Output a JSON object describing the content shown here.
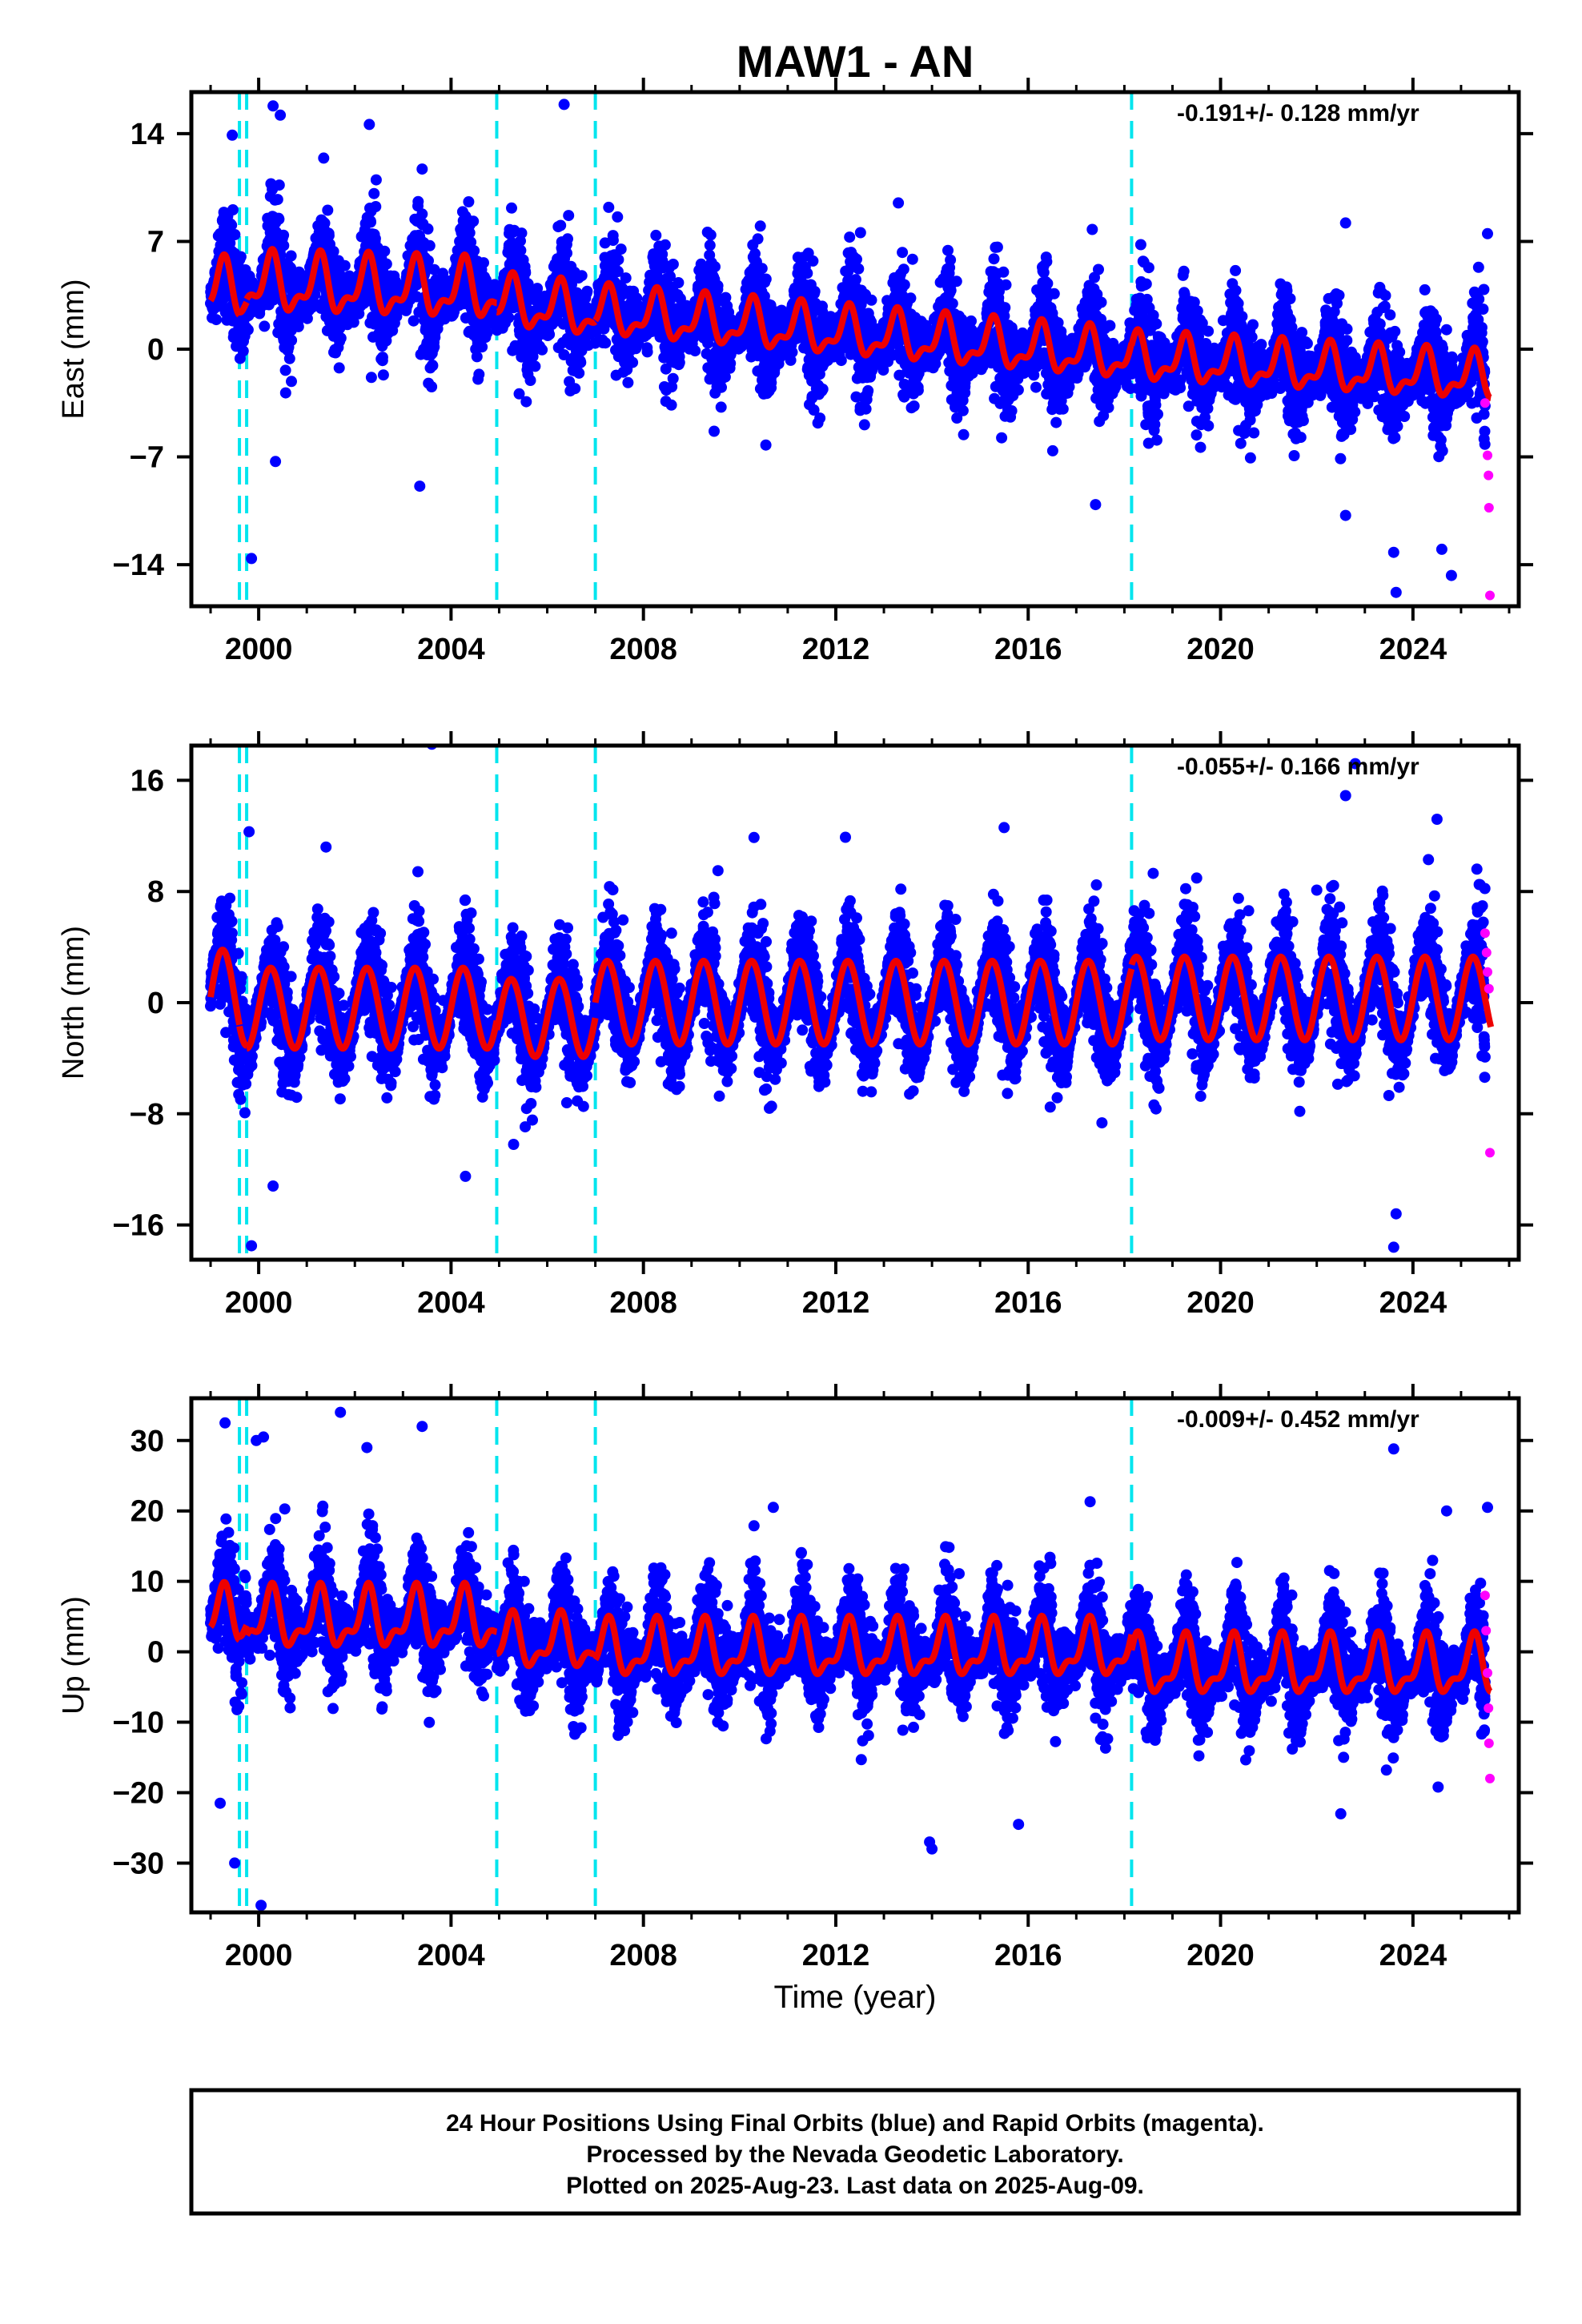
{
  "title": "MAW1 - AN",
  "colors": {
    "final_orbits": "#0000ff",
    "rapid_orbits": "#ff00ff",
    "model": "#ee0000",
    "steps": "#00e5ee",
    "frame": "#000000"
  },
  "xlabel": "Time (year)",
  "footer": {
    "line1": "24 Hour Positions Using Final Orbits (blue) and Rapid Orbits (magenta).",
    "line2": "Processed by the Nevada Geodetic Laboratory.",
    "line3": "Plotted on 2025-Aug-23. Last data on 2025-Aug-09."
  },
  "chart_data": [
    {
      "type": "scatter",
      "component": "East",
      "ylabel": "East (mm)",
      "rate_label": "-0.191+/- 0.128 mm/yr",
      "xlim": [
        1998.6,
        2026.2
      ],
      "ylim": [
        -16.7,
        16.7
      ],
      "xticks": [
        2000,
        2004,
        2008,
        2012,
        2016,
        2020,
        2024
      ],
      "yticks": [
        -14,
        -7,
        0,
        7,
        14
      ],
      "step_epochs": [
        1999.6,
        1999.75,
        2004.95,
        2007.0,
        2018.15
      ],
      "model_segments": [
        {
          "from": 1999.0,
          "to": 1999.6,
          "offset": 3.8,
          "rate": 0.0,
          "annual": 1.6,
          "semiannual": 0.8
        },
        {
          "from": 1999.6,
          "to": 1999.75,
          "offset": 4.0,
          "rate": 0.0,
          "annual": 1.6,
          "semiannual": 0.8
        },
        {
          "from": 1999.75,
          "to": 2004.95,
          "offset": 4.2,
          "rate": -0.09,
          "annual": 1.6,
          "semiannual": 0.8
        },
        {
          "from": 2004.95,
          "to": 2007.0,
          "offset": 3.05,
          "rate": -0.34,
          "annual": 1.4,
          "semiannual": 0.7
        },
        {
          "from": 2007.0,
          "to": 2018.15,
          "offset": 2.4,
          "rate": -0.26,
          "annual": 1.35,
          "semiannual": 0.65
        },
        {
          "from": 2018.15,
          "to": 2025.62,
          "offset": -0.6,
          "rate": -0.17,
          "annual": 1.3,
          "semiannual": 0.65
        }
      ],
      "rapid_points": [
        {
          "x": 2025.5,
          "y": -3.5
        },
        {
          "x": 2025.55,
          "y": -6.9
        },
        {
          "x": 2025.57,
          "y": -8.2
        },
        {
          "x": 2025.58,
          "y": -10.3
        },
        {
          "x": 2025.6,
          "y": -16.0
        }
      ],
      "outliers": [
        {
          "x": 2000.3,
          "y": 15.8
        },
        {
          "x": 2000.45,
          "y": 15.2
        },
        {
          "x": 2002.3,
          "y": 14.6
        },
        {
          "x": 2006.35,
          "y": 15.9
        },
        {
          "x": 1999.45,
          "y": 13.9
        },
        {
          "x": 2003.4,
          "y": 11.7
        },
        {
          "x": 2003.35,
          "y": -8.9
        },
        {
          "x": 1999.85,
          "y": -13.6
        },
        {
          "x": 2023.6,
          "y": -13.2
        },
        {
          "x": 2023.65,
          "y": -15.8
        },
        {
          "x": 2024.6,
          "y": -13.0
        },
        {
          "x": 2024.8,
          "y": -14.7
        },
        {
          "x": 2017.4,
          "y": -10.1
        },
        {
          "x": 2022.6,
          "y": -10.8
        },
        {
          "x": 2013.3,
          "y": 9.5
        },
        {
          "x": 2022.6,
          "y": 8.2
        },
        {
          "x": 2025.55,
          "y": 7.5
        },
        {
          "x": 2000.35,
          "y": -7.3
        }
      ]
    },
    {
      "type": "scatter",
      "component": "North",
      "ylabel": "North (mm)",
      "rate_label": "-0.055+/- 0.166 mm/yr",
      "xlim": [
        1998.6,
        2026.2
      ],
      "ylim": [
        -18.5,
        18.5
      ],
      "xticks": [
        2000,
        2004,
        2008,
        2012,
        2016,
        2020,
        2024
      ],
      "yticks": [
        -16,
        -8,
        0,
        8,
        16
      ],
      "step_epochs": [
        1999.6,
        1999.75,
        2004.95,
        2007.0,
        2018.15
      ],
      "model_segments": [
        {
          "from": 1999.0,
          "to": 1999.6,
          "offset": 0.4,
          "rate": 0.0,
          "annual": 3.4,
          "semiannual": 0.0
        },
        {
          "from": 1999.6,
          "to": 1999.75,
          "offset": 0.3,
          "rate": 0.0,
          "annual": 3.4,
          "semiannual": 0.0
        },
        {
          "from": 1999.75,
          "to": 2004.95,
          "offset": -0.4,
          "rate": 0.0,
          "annual": 2.9,
          "semiannual": 0.0
        },
        {
          "from": 2004.95,
          "to": 2007.0,
          "offset": -1.1,
          "rate": 0.0,
          "annual": 2.8,
          "semiannual": 0.0
        },
        {
          "from": 2007.0,
          "to": 2018.15,
          "offset": 0.0,
          "rate": 0.0,
          "annual": 3.0,
          "semiannual": 0.0
        },
        {
          "from": 2018.15,
          "to": 2025.62,
          "offset": 0.3,
          "rate": 0.0,
          "annual": 3.0,
          "semiannual": 0.0
        }
      ],
      "rapid_points": [
        {
          "x": 2025.5,
          "y": 5.0
        },
        {
          "x": 2025.53,
          "y": 3.6
        },
        {
          "x": 2025.55,
          "y": 2.2
        },
        {
          "x": 2025.58,
          "y": 1.0
        },
        {
          "x": 2025.6,
          "y": -10.8
        }
      ],
      "outliers": [
        {
          "x": 2003.6,
          "y": 18.6
        },
        {
          "x": 2022.8,
          "y": 17.2
        },
        {
          "x": 2012.2,
          "y": 11.9
        },
        {
          "x": 2015.5,
          "y": 12.6
        },
        {
          "x": 2001.4,
          "y": 11.2
        },
        {
          "x": 1999.8,
          "y": 12.3
        },
        {
          "x": 2022.6,
          "y": 14.9
        },
        {
          "x": 2024.5,
          "y": 13.2
        },
        {
          "x": 2000.3,
          "y": -13.2
        },
        {
          "x": 2004.3,
          "y": -12.5
        },
        {
          "x": 1999.85,
          "y": -17.5
        },
        {
          "x": 2023.6,
          "y": -17.6
        },
        {
          "x": 2023.65,
          "y": -15.2
        },
        {
          "x": 2005.3,
          "y": -10.2
        },
        {
          "x": 2018.6,
          "y": 9.3
        },
        {
          "x": 2022.0,
          "y": 8.1
        },
        {
          "x": 2009.55,
          "y": 9.5
        }
      ]
    },
    {
      "type": "scatter",
      "component": "Up",
      "ylabel": "Up (mm)",
      "rate_label": "-0.009+/- 0.452 mm/yr",
      "xlim": [
        1998.6,
        2026.2
      ],
      "ylim": [
        -37,
        36
      ],
      "xticks": [
        2000,
        2004,
        2008,
        2012,
        2016,
        2020,
        2024
      ],
      "yticks": [
        -30,
        -20,
        -10,
        0,
        10,
        20,
        30
      ],
      "step_epochs": [
        1999.6,
        1999.75,
        2004.95,
        2007.0,
        2018.15
      ],
      "model_segments": [
        {
          "from": 1999.0,
          "to": 1999.6,
          "offset": 5.0,
          "rate": 0.0,
          "annual": 3.2,
          "semiannual": 1.8
        },
        {
          "from": 1999.6,
          "to": 1999.75,
          "offset": 5.5,
          "rate": 0.0,
          "annual": 3.2,
          "semiannual": 1.8
        },
        {
          "from": 1999.75,
          "to": 2004.95,
          "offset": 4.5,
          "rate": 0.0,
          "annual": 3.6,
          "semiannual": 1.8
        },
        {
          "from": 2004.95,
          "to": 2007.0,
          "offset": 1.2,
          "rate": 0.0,
          "annual": 3.2,
          "semiannual": 1.6
        },
        {
          "from": 2007.0,
          "to": 2018.15,
          "offset": 0.2,
          "rate": 0.0,
          "annual": 3.4,
          "semiannual": 1.6
        },
        {
          "from": 2018.15,
          "to": 2025.62,
          "offset": -2.2,
          "rate": 0.0,
          "annual": 3.6,
          "semiannual": 1.6
        }
      ],
      "rapid_points": [
        {
          "x": 2025.5,
          "y": 8.0
        },
        {
          "x": 2025.52,
          "y": 3.0
        },
        {
          "x": 2025.55,
          "y": -3.0
        },
        {
          "x": 2025.57,
          "y": -8.0
        },
        {
          "x": 2025.58,
          "y": -13.0
        },
        {
          "x": 2025.6,
          "y": -18.0
        }
      ],
      "outliers": [
        {
          "x": 2001.7,
          "y": 34.0
        },
        {
          "x": 2003.4,
          "y": 32.0
        },
        {
          "x": 1999.3,
          "y": 32.5
        },
        {
          "x": 2023.6,
          "y": 28.8
        },
        {
          "x": 2000.1,
          "y": 30.5
        },
        {
          "x": 1999.95,
          "y": 30.0
        },
        {
          "x": 2002.25,
          "y": 29.0
        },
        {
          "x": 1999.5,
          "y": -30.0
        },
        {
          "x": 2000.05,
          "y": -36.0
        },
        {
          "x": 2014.0,
          "y": -28.0
        },
        {
          "x": 2013.95,
          "y": -27.0
        },
        {
          "x": 2015.8,
          "y": -24.5
        },
        {
          "x": 2022.5,
          "y": -23.0
        },
        {
          "x": 1999.2,
          "y": -21.5
        },
        {
          "x": 2024.7,
          "y": 20.0
        },
        {
          "x": 2010.7,
          "y": 20.5
        },
        {
          "x": 2025.55,
          "y": 20.5
        }
      ]
    }
  ]
}
